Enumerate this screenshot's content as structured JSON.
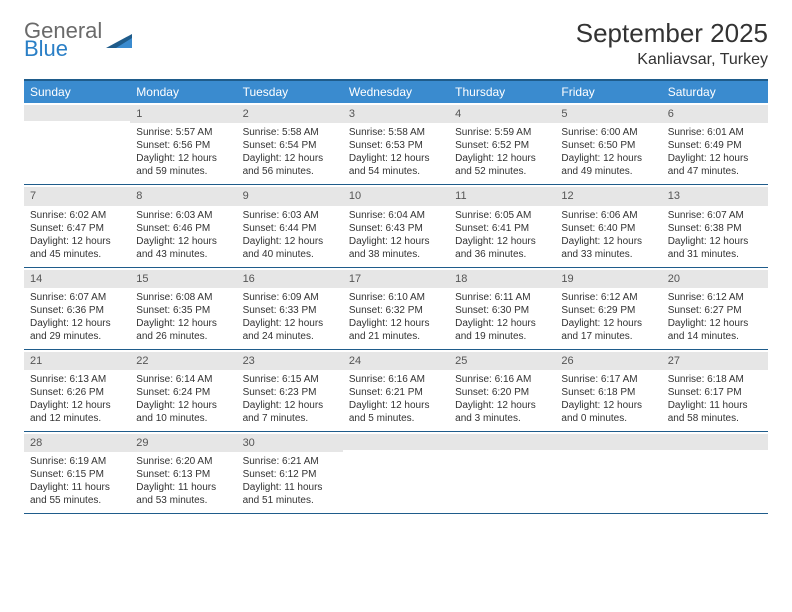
{
  "logo": {
    "word1": "General",
    "word2": "Blue"
  },
  "title": {
    "month": "September 2025",
    "location": "Kanliavsar, Turkey"
  },
  "colors": {
    "header_bar": "#3a8bcf",
    "rule": "#1f5c8b",
    "daynum_bg": "#e6e6e6",
    "text": "#333333",
    "logo_gray": "#6a6a6a",
    "logo_blue": "#2a7fc6",
    "background": "#ffffff"
  },
  "typography": {
    "title_fontsize": 26,
    "location_fontsize": 16,
    "dayhead_fontsize": 12,
    "cell_fontsize": 10
  },
  "dayheads": [
    "Sunday",
    "Monday",
    "Tuesday",
    "Wednesday",
    "Thursday",
    "Friday",
    "Saturday"
  ],
  "weeks": [
    [
      {
        "day": "",
        "sunrise": "",
        "sunset": "",
        "daylight1": "",
        "daylight2": ""
      },
      {
        "day": "1",
        "sunrise": "Sunrise: 5:57 AM",
        "sunset": "Sunset: 6:56 PM",
        "daylight1": "Daylight: 12 hours",
        "daylight2": "and 59 minutes."
      },
      {
        "day": "2",
        "sunrise": "Sunrise: 5:58 AM",
        "sunset": "Sunset: 6:54 PM",
        "daylight1": "Daylight: 12 hours",
        "daylight2": "and 56 minutes."
      },
      {
        "day": "3",
        "sunrise": "Sunrise: 5:58 AM",
        "sunset": "Sunset: 6:53 PM",
        "daylight1": "Daylight: 12 hours",
        "daylight2": "and 54 minutes."
      },
      {
        "day": "4",
        "sunrise": "Sunrise: 5:59 AM",
        "sunset": "Sunset: 6:52 PM",
        "daylight1": "Daylight: 12 hours",
        "daylight2": "and 52 minutes."
      },
      {
        "day": "5",
        "sunrise": "Sunrise: 6:00 AM",
        "sunset": "Sunset: 6:50 PM",
        "daylight1": "Daylight: 12 hours",
        "daylight2": "and 49 minutes."
      },
      {
        "day": "6",
        "sunrise": "Sunrise: 6:01 AM",
        "sunset": "Sunset: 6:49 PM",
        "daylight1": "Daylight: 12 hours",
        "daylight2": "and 47 minutes."
      }
    ],
    [
      {
        "day": "7",
        "sunrise": "Sunrise: 6:02 AM",
        "sunset": "Sunset: 6:47 PM",
        "daylight1": "Daylight: 12 hours",
        "daylight2": "and 45 minutes."
      },
      {
        "day": "8",
        "sunrise": "Sunrise: 6:03 AM",
        "sunset": "Sunset: 6:46 PM",
        "daylight1": "Daylight: 12 hours",
        "daylight2": "and 43 minutes."
      },
      {
        "day": "9",
        "sunrise": "Sunrise: 6:03 AM",
        "sunset": "Sunset: 6:44 PM",
        "daylight1": "Daylight: 12 hours",
        "daylight2": "and 40 minutes."
      },
      {
        "day": "10",
        "sunrise": "Sunrise: 6:04 AM",
        "sunset": "Sunset: 6:43 PM",
        "daylight1": "Daylight: 12 hours",
        "daylight2": "and 38 minutes."
      },
      {
        "day": "11",
        "sunrise": "Sunrise: 6:05 AM",
        "sunset": "Sunset: 6:41 PM",
        "daylight1": "Daylight: 12 hours",
        "daylight2": "and 36 minutes."
      },
      {
        "day": "12",
        "sunrise": "Sunrise: 6:06 AM",
        "sunset": "Sunset: 6:40 PM",
        "daylight1": "Daylight: 12 hours",
        "daylight2": "and 33 minutes."
      },
      {
        "day": "13",
        "sunrise": "Sunrise: 6:07 AM",
        "sunset": "Sunset: 6:38 PM",
        "daylight1": "Daylight: 12 hours",
        "daylight2": "and 31 minutes."
      }
    ],
    [
      {
        "day": "14",
        "sunrise": "Sunrise: 6:07 AM",
        "sunset": "Sunset: 6:36 PM",
        "daylight1": "Daylight: 12 hours",
        "daylight2": "and 29 minutes."
      },
      {
        "day": "15",
        "sunrise": "Sunrise: 6:08 AM",
        "sunset": "Sunset: 6:35 PM",
        "daylight1": "Daylight: 12 hours",
        "daylight2": "and 26 minutes."
      },
      {
        "day": "16",
        "sunrise": "Sunrise: 6:09 AM",
        "sunset": "Sunset: 6:33 PM",
        "daylight1": "Daylight: 12 hours",
        "daylight2": "and 24 minutes."
      },
      {
        "day": "17",
        "sunrise": "Sunrise: 6:10 AM",
        "sunset": "Sunset: 6:32 PM",
        "daylight1": "Daylight: 12 hours",
        "daylight2": "and 21 minutes."
      },
      {
        "day": "18",
        "sunrise": "Sunrise: 6:11 AM",
        "sunset": "Sunset: 6:30 PM",
        "daylight1": "Daylight: 12 hours",
        "daylight2": "and 19 minutes."
      },
      {
        "day": "19",
        "sunrise": "Sunrise: 6:12 AM",
        "sunset": "Sunset: 6:29 PM",
        "daylight1": "Daylight: 12 hours",
        "daylight2": "and 17 minutes."
      },
      {
        "day": "20",
        "sunrise": "Sunrise: 6:12 AM",
        "sunset": "Sunset: 6:27 PM",
        "daylight1": "Daylight: 12 hours",
        "daylight2": "and 14 minutes."
      }
    ],
    [
      {
        "day": "21",
        "sunrise": "Sunrise: 6:13 AM",
        "sunset": "Sunset: 6:26 PM",
        "daylight1": "Daylight: 12 hours",
        "daylight2": "and 12 minutes."
      },
      {
        "day": "22",
        "sunrise": "Sunrise: 6:14 AM",
        "sunset": "Sunset: 6:24 PM",
        "daylight1": "Daylight: 12 hours",
        "daylight2": "and 10 minutes."
      },
      {
        "day": "23",
        "sunrise": "Sunrise: 6:15 AM",
        "sunset": "Sunset: 6:23 PM",
        "daylight1": "Daylight: 12 hours",
        "daylight2": "and 7 minutes."
      },
      {
        "day": "24",
        "sunrise": "Sunrise: 6:16 AM",
        "sunset": "Sunset: 6:21 PM",
        "daylight1": "Daylight: 12 hours",
        "daylight2": "and 5 minutes."
      },
      {
        "day": "25",
        "sunrise": "Sunrise: 6:16 AM",
        "sunset": "Sunset: 6:20 PM",
        "daylight1": "Daylight: 12 hours",
        "daylight2": "and 3 minutes."
      },
      {
        "day": "26",
        "sunrise": "Sunrise: 6:17 AM",
        "sunset": "Sunset: 6:18 PM",
        "daylight1": "Daylight: 12 hours",
        "daylight2": "and 0 minutes."
      },
      {
        "day": "27",
        "sunrise": "Sunrise: 6:18 AM",
        "sunset": "Sunset: 6:17 PM",
        "daylight1": "Daylight: 11 hours",
        "daylight2": "and 58 minutes."
      }
    ],
    [
      {
        "day": "28",
        "sunrise": "Sunrise: 6:19 AM",
        "sunset": "Sunset: 6:15 PM",
        "daylight1": "Daylight: 11 hours",
        "daylight2": "and 55 minutes."
      },
      {
        "day": "29",
        "sunrise": "Sunrise: 6:20 AM",
        "sunset": "Sunset: 6:13 PM",
        "daylight1": "Daylight: 11 hours",
        "daylight2": "and 53 minutes."
      },
      {
        "day": "30",
        "sunrise": "Sunrise: 6:21 AM",
        "sunset": "Sunset: 6:12 PM",
        "daylight1": "Daylight: 11 hours",
        "daylight2": "and 51 minutes."
      },
      {
        "day": "",
        "sunrise": "",
        "sunset": "",
        "daylight1": "",
        "daylight2": ""
      },
      {
        "day": "",
        "sunrise": "",
        "sunset": "",
        "daylight1": "",
        "daylight2": ""
      },
      {
        "day": "",
        "sunrise": "",
        "sunset": "",
        "daylight1": "",
        "daylight2": ""
      },
      {
        "day": "",
        "sunrise": "",
        "sunset": "",
        "daylight1": "",
        "daylight2": ""
      }
    ]
  ]
}
